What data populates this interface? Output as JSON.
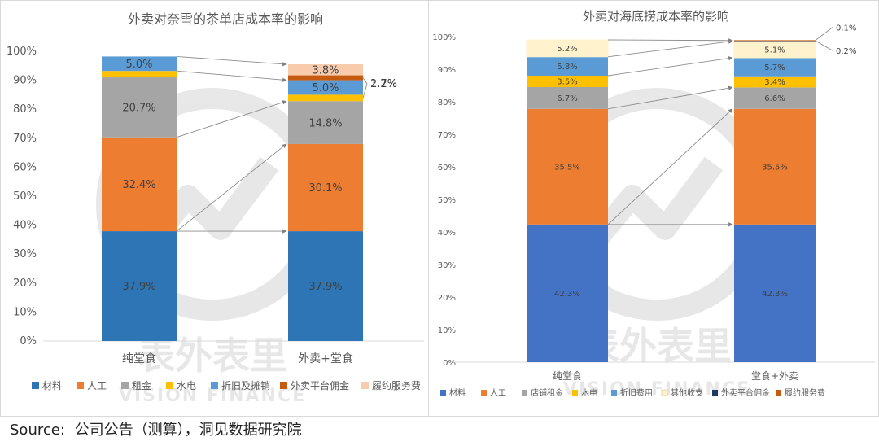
{
  "source": {
    "label": "Source:",
    "text": "公司公告（测算），洞见数据研究院"
  },
  "watermark": {
    "cn": "表外表里",
    "en": "VISION FINANCE"
  },
  "chart_data": [
    {
      "type": "bar",
      "stacked": true,
      "title": "外卖对奈雪的茶单店成本率的影响",
      "categories": [
        "纯堂食",
        "外卖+堂食"
      ],
      "ylim": [
        0,
        100
      ],
      "yticks": [
        "0%",
        "10%",
        "20%",
        "30%",
        "40%",
        "50%",
        "60%",
        "70%",
        "80%",
        "90%",
        "100%"
      ],
      "legend_position": "bottom",
      "series": [
        {
          "name": "材料",
          "color": "#2e75b6",
          "values": [
            37.9,
            37.9
          ],
          "labels": [
            "37.9%",
            "37.9%"
          ]
        },
        {
          "name": "人工",
          "color": "#ed7d31",
          "values": [
            32.4,
            30.1
          ],
          "labels": [
            "32.4%",
            "30.1%"
          ]
        },
        {
          "name": "租金",
          "color": "#a5a5a5",
          "values": [
            20.7,
            14.8
          ],
          "labels": [
            "20.7%",
            "14.8%"
          ]
        },
        {
          "name": "水电",
          "color": "#ffc000",
          "values": [
            2.2,
            2.2
          ],
          "labels": [
            "2.2%",
            "2.2%"
          ]
        },
        {
          "name": "折旧及摊销",
          "color": "#5b9bd5",
          "values": [
            5.0,
            5.0
          ],
          "labels": [
            "5.0%",
            "5.0%"
          ]
        },
        {
          "name": "外卖平台佣金",
          "color": "#c55a11",
          "values": [
            0,
            1.7
          ],
          "labels": [
            "",
            "1.7%"
          ]
        },
        {
          "name": "履约服务费",
          "color": "#f8cbad",
          "values": [
            0,
            3.8
          ],
          "labels": [
            "",
            "3.8%"
          ]
        }
      ]
    },
    {
      "type": "bar",
      "stacked": true,
      "title": "外卖对海底捞成本率的影响",
      "categories": [
        "纯堂食",
        "堂食+外卖"
      ],
      "ylim": [
        0,
        100
      ],
      "yticks": [
        "0%",
        "10%",
        "20%",
        "30%",
        "40%",
        "50%",
        "60%",
        "70%",
        "80%",
        "90%",
        "100%"
      ],
      "legend_position": "bottom",
      "series": [
        {
          "name": "材料",
          "color": "#4472c4",
          "values": [
            42.3,
            42.3
          ],
          "labels": [
            "42.3%",
            "42.3%"
          ]
        },
        {
          "name": "人工",
          "color": "#ed7d31",
          "values": [
            35.5,
            35.5
          ],
          "labels": [
            "35.5%",
            "35.5%"
          ]
        },
        {
          "name": "店铺租金",
          "color": "#a5a5a5",
          "values": [
            6.7,
            6.6
          ],
          "labels": [
            "6.7%",
            "6.6%"
          ]
        },
        {
          "name": "水电",
          "color": "#ffc000",
          "values": [
            3.5,
            3.4
          ],
          "labels": [
            "3.5%",
            "3.4%"
          ]
        },
        {
          "name": "折旧费用",
          "color": "#5b9bd5",
          "values": [
            5.8,
            5.7
          ],
          "labels": [
            "5.8%",
            "5.7%"
          ]
        },
        {
          "name": "其他收支",
          "color": "#fff2cc",
          "values": [
            5.2,
            5.1
          ],
          "labels": [
            "5.2%",
            "5.1%"
          ]
        },
        {
          "name": "外卖平台佣金",
          "color": "#1f3864",
          "values": [
            0,
            0.2
          ],
          "labels": [
            "",
            "0.2%"
          ]
        },
        {
          "name": "履约服务费",
          "color": "#c55a11",
          "values": [
            0,
            0.1
          ],
          "labels": [
            "",
            "0.1%"
          ]
        }
      ]
    }
  ]
}
